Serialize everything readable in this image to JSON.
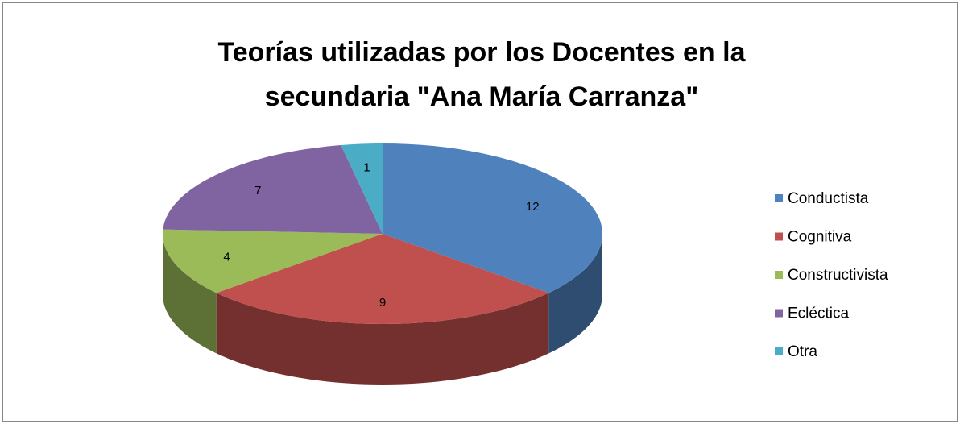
{
  "chart_data": {
    "type": "pie",
    "title": "Teorías utilizadas por los Docentes en la secundaria \"Ana María Carranza\"",
    "categories": [
      "Conductista",
      "Cognitiva",
      "Constructivista",
      "Ecléctica",
      "Otra"
    ],
    "values": [
      12,
      9,
      4,
      7,
      1
    ],
    "colors": [
      "#4f81bd",
      "#c0504d",
      "#9bbb59",
      "#8064a2",
      "#4bacc6"
    ],
    "legend": "right"
  }
}
